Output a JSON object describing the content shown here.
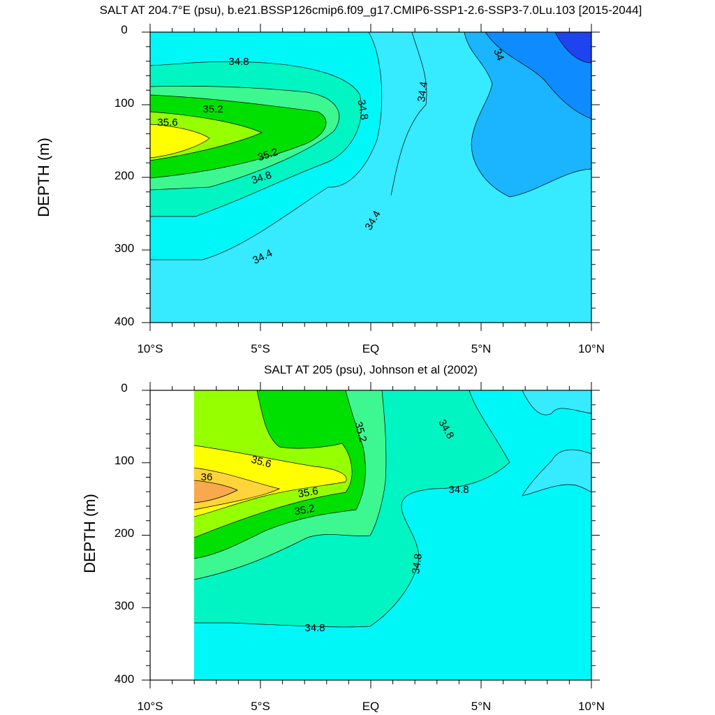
{
  "colors": {
    "s33_8": "#1e44f0",
    "s34_0": "#0e8cff",
    "s34_2": "#1ab4ff",
    "s34_4": "#36eaff",
    "s34_6": "#00f7f7",
    "s34_8": "#00f5c2",
    "s35_0": "#3df790",
    "s35_2": "#00e000",
    "s35_4": "#96ff00",
    "s35_6": "#ffff00",
    "s35_8": "#ffd43b",
    "s36_0": "#f7a94d"
  },
  "chart_data": [
    {
      "type": "contour",
      "title": "SALT AT 204.7°E (psu), b.e21.BSSP126cmip6.f09_g17.CMIP6-SSP1-2.6-SSP3-7.0Lu.103 [2015-2044]",
      "ylabel": "DEPTH (m)",
      "xlabel": "",
      "xlim": [
        -10,
        10
      ],
      "ylim": [
        400,
        0
      ],
      "x_ticks": [
        "10°S",
        "5°S",
        "EQ",
        "5°N",
        "10°N"
      ],
      "y_ticks": [
        "0",
        "100",
        "200",
        "300",
        "400"
      ],
      "contour_labels": [
        "34.8",
        "35.2",
        "35.6",
        "35.2",
        "34.8",
        "34.4",
        "34.8",
        "34.4",
        "34.4",
        "34"
      ],
      "cores": [
        {
          "x": -9,
          "y": 145,
          "value": 35.7
        },
        {
          "x": 10,
          "y": 20,
          "value": 33.8
        }
      ]
    },
    {
      "type": "contour",
      "title": "SALT AT 205 (psu), Johnson et al (2002)",
      "ylabel": "DEPTH (m)",
      "xlabel": "",
      "xlim": [
        -10,
        10
      ],
      "ylim": [
        400,
        0
      ],
      "data_x_range": [
        -8,
        10
      ],
      "x_ticks": [
        "10°S",
        "5°S",
        "EQ",
        "5°N",
        "10°N"
      ],
      "y_ticks": [
        "0",
        "100",
        "200",
        "300",
        "400"
      ],
      "contour_labels": [
        "35.2",
        "34.8",
        "35.6",
        "36",
        "35.6",
        "35.2",
        "34.8",
        "34.8",
        "34.8"
      ],
      "cores": [
        {
          "x": -7.5,
          "y": 140,
          "value": 36.0
        }
      ]
    }
  ]
}
